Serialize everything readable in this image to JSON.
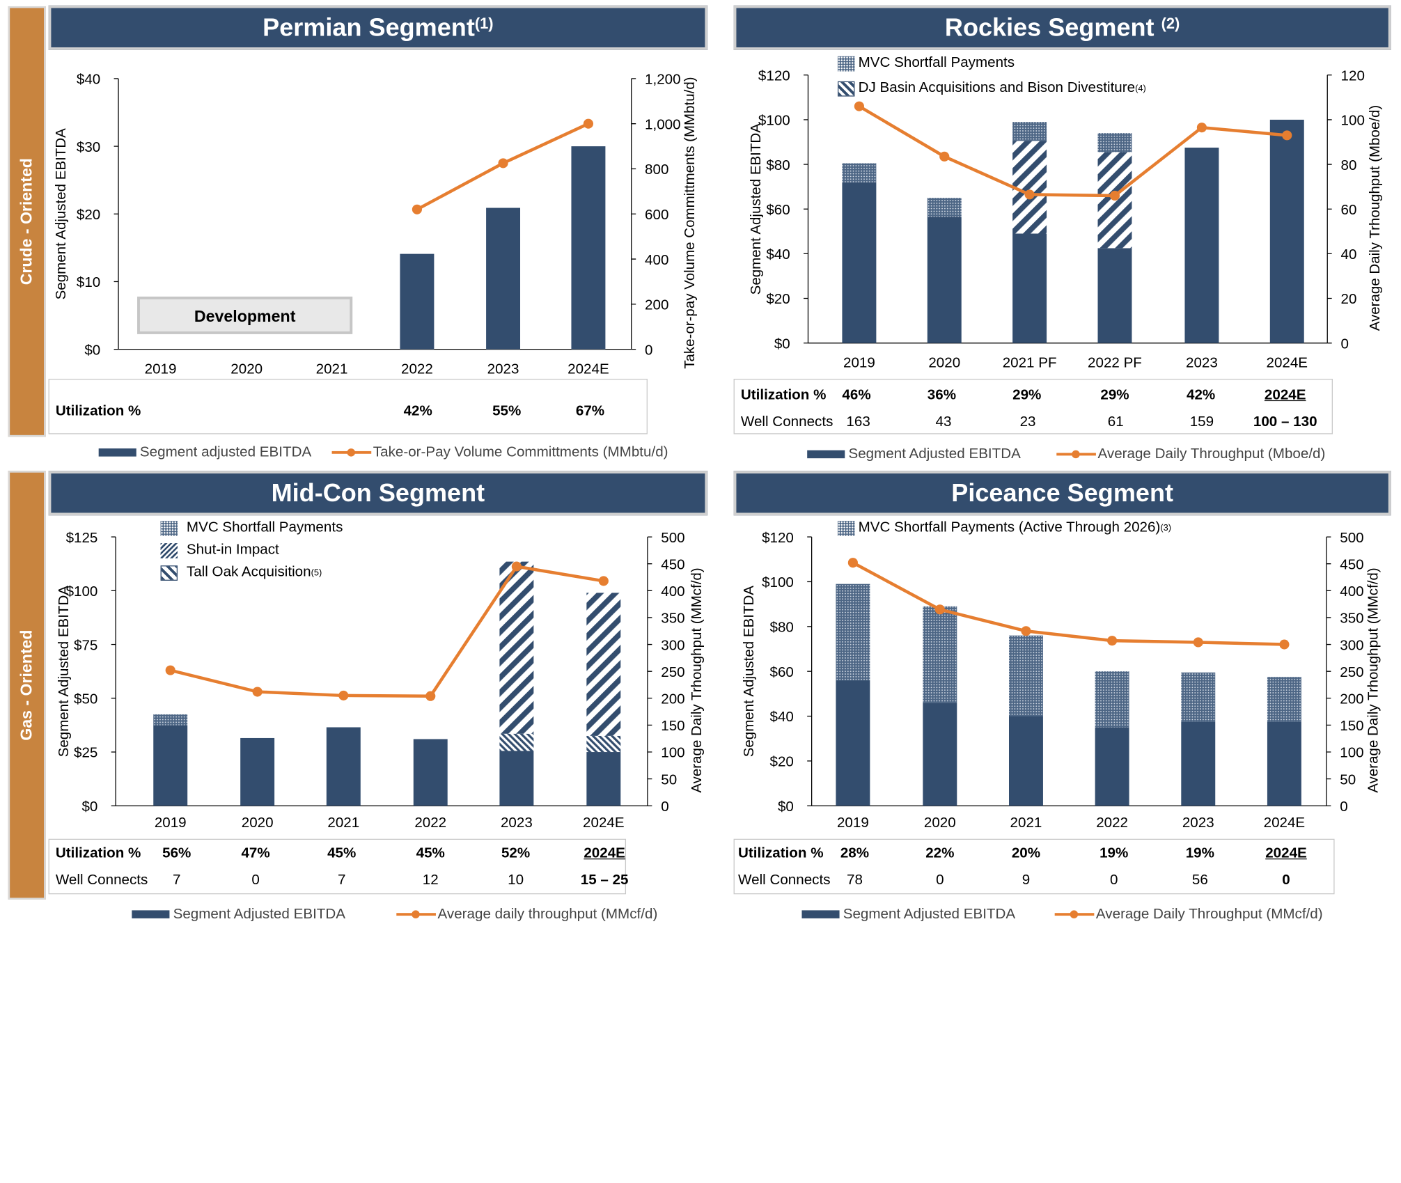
{
  "side_labels": {
    "top": "Crude - Oriented",
    "bottom": "Gas - Oriented"
  },
  "colors": {
    "bar": "#334d6e",
    "line": "#e67e30",
    "header": "#334d6e",
    "side": "#c8843f"
  },
  "panels": {
    "permian": {
      "title": "Permian Segment",
      "title_note": "(1)",
      "development_label": "Development",
      "table": {
        "rows": [
          {
            "label": "Utilization %",
            "values": [
              "",
              "",
              "",
              "42%",
              "55%",
              "67%"
            ]
          }
        ]
      },
      "legend": {
        "bar": "Segment adjusted EBITDA",
        "line": "Take-or-Pay Volume Committments (MMbtu/d)"
      }
    },
    "rockies": {
      "title": "Rockies Segment",
      "title_note": "(2)",
      "inner_legend": [
        {
          "text": "MVC Shortfall Payments",
          "note": "",
          "icon": "dots-pattern-icon"
        },
        {
          "text": "DJ Basin Acquisitions and Bison Divestiture",
          "note": "(4)",
          "icon": "diagonal-hatch-icon"
        }
      ],
      "table": {
        "rows": [
          {
            "label": "Utilization %",
            "values": [
              "46%",
              "36%",
              "29%",
              "29%",
              "42%",
              "2024E"
            ]
          },
          {
            "label": "Well Connects",
            "values": [
              "163",
              "43",
              "23",
              "61",
              "159",
              "100 – 130"
            ]
          }
        ]
      },
      "legend": {
        "bar": "Segment Adjusted EBITDA",
        "line": "Average Daily Throughput (Mboe/d)"
      }
    },
    "midcon": {
      "title": "Mid-Con Segment",
      "inner_legend": [
        {
          "text": "MVC Shortfall Payments",
          "note": "",
          "icon": "dots-pattern-icon"
        },
        {
          "text": "Shut-in Impact",
          "note": "",
          "icon": "fine-hatch-icon"
        },
        {
          "text": "Tall Oak Acquisition",
          "note": "(5)",
          "icon": "wide-hatch-icon"
        }
      ],
      "table": {
        "rows": [
          {
            "label": "Utilization %",
            "values": [
              "56%",
              "47%",
              "45%",
              "45%",
              "52%",
              "2024E"
            ]
          },
          {
            "label": "Well Connects",
            "values": [
              "7",
              "0",
              "7",
              "12",
              "10",
              "15 – 25"
            ]
          }
        ]
      },
      "legend": {
        "bar": "Segment Adjusted EBITDA",
        "line": "Average daily throughput (MMcf/d)"
      }
    },
    "piceance": {
      "title": "Piceance Segment",
      "inner_legend": [
        {
          "text": "MVC Shortfall Payments (Active Through 2026)",
          "note": "(3)",
          "icon": "dots-pattern-icon"
        }
      ],
      "table": {
        "rows": [
          {
            "label": "Utilization %",
            "values": [
              "28%",
              "22%",
              "20%",
              "19%",
              "19%",
              "2024E"
            ]
          },
          {
            "label": "Well Connects",
            "values": [
              "78",
              "0",
              "9",
              "0",
              "56",
              "0"
            ]
          }
        ]
      },
      "legend": {
        "bar": "Segment Adjusted EBITDA",
        "line": "Average Daily Throughput (MMcf/d)"
      }
    }
  },
  "chart_data": [
    {
      "id": "permian",
      "type": "bar",
      "categories": [
        "2019",
        "2020",
        "2021",
        "2022",
        "2023",
        "2024E"
      ],
      "ylabel": "Segment Adjusted EBITDA",
      "ylim": [
        0,
        40
      ],
      "yticks": [
        "$0",
        "$10",
        "$20",
        "$30",
        "$40"
      ],
      "y2label": "Take-or-pay Volume Committments (MMbtu/d)",
      "y2lim": [
        0,
        1200
      ],
      "y2ticks": [
        "0",
        "200",
        "400",
        "600",
        "800",
        "1,000",
        "1,200"
      ],
      "series": [
        {
          "name": "Segment adjusted EBITDA",
          "values": [
            null,
            null,
            null,
            14.1,
            20.9,
            30
          ]
        }
      ],
      "line": {
        "name": "Take-or-Pay Volume Committments (MMbtu/d)",
        "values": [
          null,
          null,
          null,
          620,
          825,
          1000
        ]
      }
    },
    {
      "id": "rockies",
      "type": "bar",
      "categories": [
        "2019",
        "2020",
        "2021 PF",
        "2022 PF",
        "2023",
        "2024E"
      ],
      "ylabel": "Segment Adjusted EBITDA",
      "ylim": [
        0,
        120
      ],
      "yticks": [
        "$0",
        "$20",
        "$40",
        "$60",
        "$80",
        "$100",
        "$120"
      ],
      "y2label": "Average Daily Trhoughput (Mboe/d)",
      "y2lim": [
        0,
        120
      ],
      "y2ticks": [
        "0",
        "20",
        "40",
        "60",
        "80",
        "100",
        "120"
      ],
      "series": [
        {
          "name": "Segment Adjusted EBITDA",
          "values": [
            72,
            56.5,
            49,
            42.5,
            87.5,
            100
          ]
        },
        {
          "name": "DJ Basin Acquisitions and Bison Divestiture",
          "values": [
            0,
            0,
            41.5,
            43,
            0,
            0
          ]
        },
        {
          "name": "MVC Shortfall Payments",
          "values": [
            8.5,
            8.5,
            8.5,
            8.5,
            0,
            0
          ]
        }
      ],
      "line": {
        "name": "Average Daily Throughput (Mboe/d)",
        "values": [
          106,
          83.5,
          66.5,
          66,
          96.5,
          93
        ]
      }
    },
    {
      "id": "midcon",
      "type": "bar",
      "categories": [
        "2019",
        "2020",
        "2021",
        "2022",
        "2023",
        "2024E"
      ],
      "ylabel": "Segment Adjusted EBITDA",
      "ylim": [
        0,
        125
      ],
      "yticks": [
        "$0",
        "$25",
        "$50",
        "$75",
        "$100",
        "$125"
      ],
      "y2label": "Average Daily Trhoughput (MMcf/d)",
      "y2lim": [
        0,
        500
      ],
      "y2ticks": [
        "0",
        "50",
        "100",
        "150",
        "200",
        "250",
        "300",
        "350",
        "400",
        "450",
        "500"
      ],
      "series": [
        {
          "name": "Segment Adjusted EBITDA",
          "values": [
            37.5,
            31.5,
            36.5,
            31,
            25.5,
            25
          ]
        },
        {
          "name": "MVC Shortfall Payments",
          "values": [
            5,
            0,
            0,
            0,
            0,
            0
          ]
        },
        {
          "name": "Shut-in Impact",
          "values": [
            0,
            0,
            0,
            0,
            8,
            7.5
          ]
        },
        {
          "name": "Tall Oak Acquisition",
          "values": [
            0,
            0,
            0,
            0,
            80,
            66.5
          ]
        }
      ],
      "line": {
        "name": "Average daily throughput (MMcf/d)",
        "values": [
          252,
          212,
          205,
          204,
          445,
          418
        ]
      }
    },
    {
      "id": "piceance",
      "type": "bar",
      "categories": [
        "2019",
        "2020",
        "2021",
        "2022",
        "2023",
        "2024E"
      ],
      "ylabel": "Segment Adjusted EBITDA",
      "ylim": [
        0,
        120
      ],
      "yticks": [
        "$0",
        "$20",
        "$40",
        "$60",
        "$80",
        "$100",
        "$120"
      ],
      "y2label": "Average Daily Trhoughput (MMcf/d)",
      "y2lim": [
        0,
        500
      ],
      "y2ticks": [
        "0",
        "50",
        "100",
        "150",
        "200",
        "250",
        "300",
        "350",
        "400",
        "450",
        "500"
      ],
      "series": [
        {
          "name": "Segment Adjusted EBITDA",
          "values": [
            56,
            46,
            40,
            35,
            37.5,
            37.5
          ]
        },
        {
          "name": "MVC Shortfall Payments (Active Through 2026)",
          "values": [
            43,
            43,
            36,
            25,
            22,
            20
          ]
        }
      ],
      "line": {
        "name": "Average Daily Throughput (MMcf/d)",
        "values": [
          452,
          365,
          325,
          307,
          304,
          300
        ]
      }
    }
  ]
}
